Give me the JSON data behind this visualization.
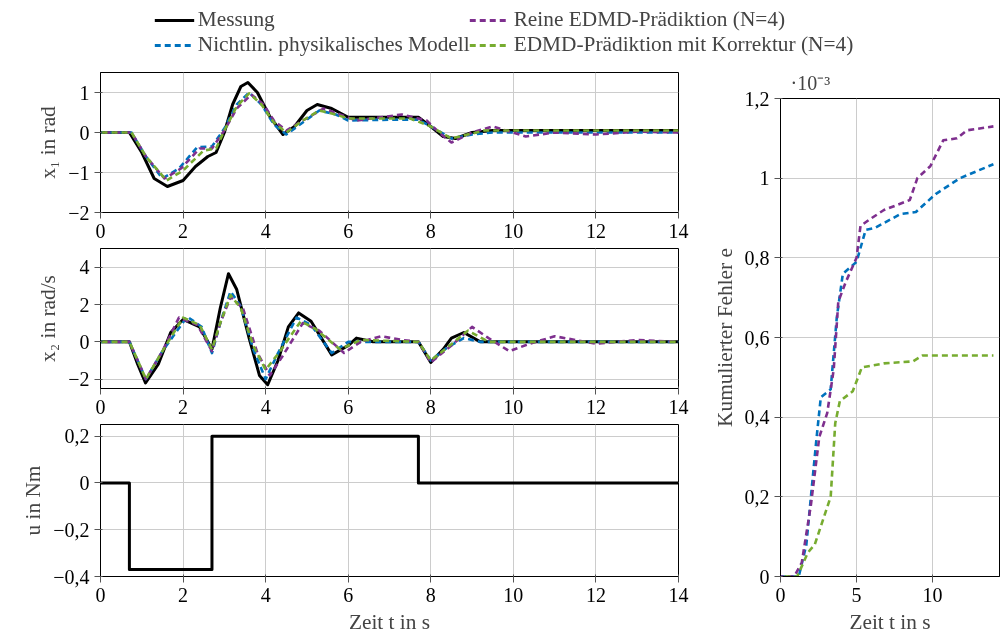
{
  "chart_data": [
    {
      "type": "line",
      "ylabel": "x₁ in rad",
      "legend": "top",
      "grid": true,
      "xlim": [
        0,
        14
      ],
      "xticks": [
        0,
        2,
        4,
        6,
        8,
        10,
        12,
        14
      ],
      "ylim": [
        -2,
        1.5
      ],
      "yticks": [
        {
          "value": -2,
          "label": "−2"
        },
        {
          "value": -1,
          "label": "−1"
        },
        0,
        1
      ],
      "series": [
        {
          "name": "Messung",
          "color": "#000000",
          "line_style": "solid",
          "x": [
            0,
            0.7,
            1.0,
            1.3,
            1.62,
            2.0,
            2.3,
            2.6,
            2.8,
            3.0,
            3.2,
            3.4,
            3.57,
            3.8,
            4.1,
            4.42,
            4.7,
            5.0,
            5.25,
            5.6,
            6.0,
            7.0,
            7.7,
            8.0,
            8.3,
            8.6,
            9.0,
            9.5,
            10,
            14
          ],
          "values": [
            0,
            0,
            -0.5,
            -1.15,
            -1.35,
            -1.2,
            -0.85,
            -0.6,
            -0.5,
            0.0,
            0.7,
            1.15,
            1.25,
            1.0,
            0.4,
            -0.05,
            0.15,
            0.55,
            0.7,
            0.6,
            0.38,
            0.38,
            0.38,
            0.15,
            -0.1,
            -0.15,
            0.0,
            0.05,
            0.05,
            0.05
          ]
        },
        {
          "name": "Nichtlin. physikalisches Modell",
          "color": "#0072bd",
          "line_style": "dashed",
          "x": [
            0,
            0.75,
            1.1,
            1.5,
            1.9,
            2.34,
            2.7,
            3.0,
            3.3,
            3.6,
            3.9,
            4.2,
            4.5,
            4.9,
            5.3,
            5.7,
            6.0,
            7.0,
            7.7,
            8.0,
            8.5,
            9.0,
            9.5,
            14
          ],
          "values": [
            0,
            0,
            -0.6,
            -1.15,
            -0.9,
            -0.37,
            -0.35,
            0.1,
            0.7,
            1.0,
            0.7,
            0.2,
            -0.05,
            0.25,
            0.55,
            0.45,
            0.3,
            0.32,
            0.32,
            0.15,
            -0.15,
            -0.05,
            0.0,
            0.0
          ]
        },
        {
          "name": "Reine EDMD-Prädiktion (N=4)",
          "color": "#7e2f8e",
          "line_style": "dashed",
          "x": [
            0,
            0.75,
            1.1,
            1.55,
            1.95,
            2.4,
            2.7,
            3.0,
            3.3,
            3.65,
            3.95,
            4.2,
            4.5,
            4.9,
            5.4,
            5.8,
            6.2,
            7.3,
            7.9,
            8.2,
            8.5,
            9.0,
            9.5,
            10.3,
            11,
            12,
            13,
            14
          ],
          "values": [
            0,
            0,
            -0.6,
            -1.15,
            -0.9,
            -0.4,
            -0.4,
            0.05,
            0.6,
            0.95,
            0.7,
            0.3,
            0.05,
            0.3,
            0.6,
            0.45,
            0.3,
            0.45,
            0.3,
            0.0,
            -0.25,
            0.0,
            0.15,
            -0.1,
            0.0,
            -0.05,
            0.02,
            0
          ]
        },
        {
          "name": "EDMD-Prädiktion mit Korrektur (N=4)",
          "color": "#77ac30",
          "line_style": "dashed",
          "x": [
            0,
            0.75,
            1.1,
            1.6,
            2.0,
            2.5,
            2.8,
            3.0,
            3.3,
            3.6,
            3.9,
            4.2,
            4.5,
            4.9,
            5.3,
            5.7,
            6.0,
            7.5,
            8.0,
            8.5,
            9.3,
            14
          ],
          "values": [
            0,
            0,
            -0.6,
            -1.2,
            -0.95,
            -0.45,
            -0.4,
            0.05,
            0.65,
            0.98,
            0.7,
            0.25,
            0.0,
            0.3,
            0.55,
            0.45,
            0.35,
            0.35,
            0.15,
            -0.15,
            0.05,
            0.05
          ]
        }
      ]
    },
    {
      "type": "line",
      "ylabel": "x₂ in rad/s",
      "grid": true,
      "xlim": [
        0,
        14
      ],
      "xticks": [
        0,
        2,
        4,
        6,
        8,
        10,
        12,
        14
      ],
      "ylim": [
        -2.5,
        5
      ],
      "yticks": [
        {
          "value": -2,
          "label": "−2"
        },
        0,
        2,
        4
      ],
      "series": [
        {
          "color": "#000000",
          "line_style": "solid",
          "x": [
            0,
            0.7,
            0.9,
            1.09,
            1.4,
            1.7,
            2.0,
            2.4,
            2.7,
            2.9,
            3.1,
            3.3,
            3.6,
            3.85,
            4.05,
            4.3,
            4.55,
            4.8,
            5.1,
            5.6,
            6.0,
            6.2,
            6.6,
            7.0,
            7.7,
            8.0,
            8.3,
            8.5,
            8.8,
            9.2,
            14
          ],
          "values": [
            0,
            0,
            -1.2,
            -2.2,
            -1.2,
            0.5,
            1.2,
            0.8,
            -0.4,
            1.8,
            3.65,
            2.8,
            0.2,
            -1.8,
            -2.3,
            -1.0,
            0.8,
            1.55,
            1.1,
            -0.7,
            -0.2,
            0.2,
            0.0,
            0.0,
            0.0,
            -1.1,
            -0.4,
            0.2,
            0.5,
            0.0,
            0
          ]
        },
        {
          "color": "#0072bd",
          "line_style": "dashed",
          "x": [
            0,
            0.7,
            1.1,
            1.5,
            2.1,
            2.45,
            2.7,
            2.9,
            3.15,
            3.4,
            3.7,
            4.0,
            4.3,
            4.75,
            5.1,
            5.6,
            6.0,
            7.7,
            8.0,
            8.4,
            8.8,
            9.2,
            14
          ],
          "values": [
            0,
            0,
            -2.0,
            -0.5,
            1.35,
            0.8,
            -0.6,
            1.0,
            2.7,
            1.9,
            -0.4,
            -2.0,
            -0.6,
            1.3,
            0.9,
            -0.6,
            0.0,
            0.0,
            -1.0,
            -0.3,
            0.2,
            0.0,
            0
          ]
        },
        {
          "color": "#7e2f8e",
          "line_style": "dashed",
          "x": [
            0,
            0.7,
            1.1,
            1.5,
            1.9,
            2.35,
            2.7,
            2.9,
            3.15,
            3.45,
            3.8,
            4.1,
            4.4,
            4.9,
            5.3,
            5.9,
            6.3,
            6.8,
            7.3,
            7.7,
            8.0,
            8.5,
            9.0,
            9.4,
            9.9,
            10.4,
            11,
            12,
            13,
            14
          ],
          "values": [
            0,
            0,
            -2.0,
            -0.5,
            1.3,
            0.9,
            -0.5,
            1.0,
            2.4,
            1.8,
            -0.6,
            -1.8,
            -0.8,
            1.0,
            0.6,
            -0.6,
            0.0,
            0.3,
            0.1,
            0.0,
            -1.1,
            -0.2,
            0.8,
            0.2,
            -0.5,
            -0.1,
            0.3,
            -0.1,
            0.1,
            0
          ]
        },
        {
          "color": "#77ac30",
          "line_style": "dashed",
          "x": [
            0,
            0.7,
            1.1,
            1.5,
            2.0,
            2.4,
            2.7,
            2.9,
            3.15,
            3.4,
            3.7,
            4.0,
            4.35,
            4.85,
            5.2,
            5.8,
            6.3,
            7.7,
            8.0,
            8.4,
            8.9,
            9.4,
            14
          ],
          "values": [
            0,
            0,
            -2.0,
            -0.5,
            1.3,
            0.9,
            -0.4,
            1.0,
            2.5,
            1.8,
            -0.2,
            -1.5,
            -0.5,
            1.1,
            0.7,
            -0.4,
            0.1,
            0.0,
            -1.0,
            -0.3,
            0.6,
            0.0,
            0
          ]
        }
      ]
    },
    {
      "type": "step",
      "ylabel": "u in Nm",
      "xlabel": "Zeit t in s",
      "grid": true,
      "xlim": [
        0,
        14
      ],
      "xticks": [
        0,
        2,
        4,
        6,
        8,
        10,
        12,
        14
      ],
      "ylim": [
        -0.4,
        0.25
      ],
      "yticks": [
        {
          "value": -0.4,
          "label": "−0,4"
        },
        {
          "value": -0.2,
          "label": "−0,2"
        },
        0,
        {
          "value": 0.2,
          "label": "0,2"
        }
      ],
      "series": [
        {
          "color": "#000000",
          "line_style": "solid",
          "x": [
            0,
            0.7,
            2.7,
            7.7,
            14
          ],
          "values": [
            0,
            -0.37,
            0.2,
            0,
            0
          ]
        }
      ]
    },
    {
      "type": "line",
      "ylabel": "Kumulierter Fehler e",
      "xlabel": "Zeit t in s",
      "annotations": [
        "·10⁻³"
      ],
      "grid": true,
      "xlim": [
        0,
        14.4
      ],
      "xticks": [
        0,
        5,
        10
      ],
      "ylim": [
        0,
        1.2
      ],
      "yticks": [
        0,
        {
          "value": 0.2,
          "label": "0,2"
        },
        {
          "value": 0.4,
          "label": "0,4"
        },
        {
          "value": 0.6,
          "label": "0,6"
        },
        {
          "value": 0.8,
          "label": "0,8"
        },
        1,
        {
          "value": 1.2,
          "label": "1,2"
        }
      ],
      "series": [
        {
          "color": "#0072bd",
          "line_style": "dashed",
          "x": [
            0,
            1.2,
            1.7,
            2.35,
            2.65,
            3.3,
            3.7,
            4.1,
            5.0,
            5.6,
            6.2,
            7.9,
            8.9,
            10.2,
            11.8,
            14.0
          ],
          "values": [
            0,
            0,
            0.08,
            0.34,
            0.45,
            0.47,
            0.65,
            0.76,
            0.79,
            0.87,
            0.875,
            0.91,
            0.915,
            0.96,
            1.0,
            1.035
          ]
        },
        {
          "color": "#7e2f8e",
          "line_style": "dashed",
          "x": [
            0,
            0.9,
            1.4,
            2.0,
            2.55,
            3.07,
            3.5,
            3.8,
            4.3,
            5.0,
            5.26,
            6.0,
            6.8,
            8.5,
            9.0,
            9.85,
            10.7,
            11.6,
            12.25,
            14.0
          ],
          "values": [
            0,
            0,
            0.035,
            0.18,
            0.35,
            0.41,
            0.52,
            0.69,
            0.74,
            0.8,
            0.88,
            0.9,
            0.92,
            0.945,
            1.0,
            1.03,
            1.095,
            1.1,
            1.12,
            1.13
          ]
        },
        {
          "color": "#77ac30",
          "line_style": "dashed",
          "x": [
            0,
            1.1,
            1.8,
            2.25,
            3.3,
            3.6,
            3.9,
            4.75,
            5.35,
            6.8,
            8.7,
            9.35,
            14.0
          ],
          "values": [
            0,
            0,
            0.06,
            0.08,
            0.2,
            0.385,
            0.44,
            0.465,
            0.525,
            0.535,
            0.54,
            0.555,
            0.555
          ]
        }
      ]
    }
  ]
}
